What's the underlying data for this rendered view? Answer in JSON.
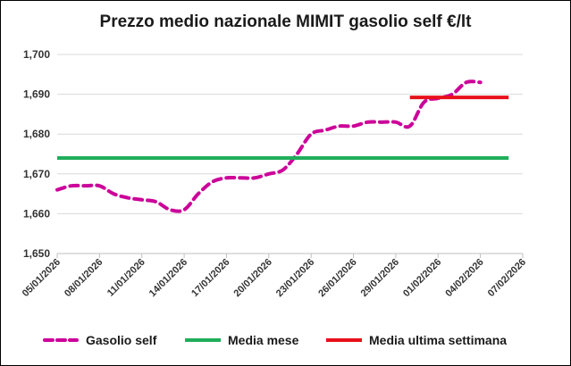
{
  "chart_data": {
    "type": "line",
    "title": "Prezzo medio nazionale MIMIT gasolio self €/lt",
    "ylim": [
      1.65,
      1.7
    ],
    "y_ticks": [
      "1,650",
      "1,660",
      "1,670",
      "1,680",
      "1,690",
      "1,700"
    ],
    "y_tick_values": [
      1.65,
      1.66,
      1.67,
      1.68,
      1.69,
      1.7
    ],
    "x_range": [
      "2026-01-05",
      "2026-02-07"
    ],
    "x_ticks": [
      "05/01/2026",
      "08/01/2026",
      "11/01/2026",
      "14/01/2026",
      "17/01/2026",
      "20/01/2026",
      "23/01/2026",
      "26/01/2026",
      "29/01/2026",
      "01/02/2026",
      "04/02/2026",
      "07/02/2026"
    ],
    "x_tick_dates": [
      "2026-01-05",
      "2026-01-08",
      "2026-01-11",
      "2026-01-14",
      "2026-01-17",
      "2026-01-20",
      "2026-01-23",
      "2026-01-26",
      "2026-01-29",
      "2026-02-01",
      "2026-02-04",
      "2026-02-07"
    ],
    "grid": "horizontal",
    "legend_position": "bottom",
    "series": [
      {
        "name": "Gasolio self",
        "style": "dashed",
        "color": "#cc0099",
        "points": [
          {
            "x": "2026-01-05",
            "y": 1.666
          },
          {
            "x": "2026-01-06",
            "y": 1.667
          },
          {
            "x": "2026-01-07",
            "y": 1.667
          },
          {
            "x": "2026-01-08",
            "y": 1.667
          },
          {
            "x": "2026-01-09",
            "y": 1.665
          },
          {
            "x": "2026-01-10",
            "y": 1.664
          },
          {
            "x": "2026-01-11",
            "y": 1.6635
          },
          {
            "x": "2026-01-12",
            "y": 1.663
          },
          {
            "x": "2026-01-13",
            "y": 1.661
          },
          {
            "x": "2026-01-14",
            "y": 1.661
          },
          {
            "x": "2026-01-15",
            "y": 1.665
          },
          {
            "x": "2026-01-16",
            "y": 1.668
          },
          {
            "x": "2026-01-17",
            "y": 1.669
          },
          {
            "x": "2026-01-18",
            "y": 1.669
          },
          {
            "x": "2026-01-19",
            "y": 1.669
          },
          {
            "x": "2026-01-20",
            "y": 1.67
          },
          {
            "x": "2026-01-21",
            "y": 1.671
          },
          {
            "x": "2026-01-22",
            "y": 1.675
          },
          {
            "x": "2026-01-23",
            "y": 1.68
          },
          {
            "x": "2026-01-24",
            "y": 1.681
          },
          {
            "x": "2026-01-25",
            "y": 1.682
          },
          {
            "x": "2026-01-26",
            "y": 1.682
          },
          {
            "x": "2026-01-27",
            "y": 1.683
          },
          {
            "x": "2026-01-28",
            "y": 1.683
          },
          {
            "x": "2026-01-29",
            "y": 1.683
          },
          {
            "x": "2026-01-30",
            "y": 1.682
          },
          {
            "x": "2026-01-31",
            "y": 1.688
          },
          {
            "x": "2026-02-01",
            "y": 1.689
          },
          {
            "x": "2026-02-02",
            "y": 1.69
          },
          {
            "x": "2026-02-03",
            "y": 1.693
          },
          {
            "x": "2026-02-04",
            "y": 1.693
          }
        ]
      },
      {
        "name": "Media mese",
        "style": "solid",
        "color": "#1fae5b",
        "points": [
          {
            "x": "2026-01-05",
            "y": 1.674
          },
          {
            "x": "2026-02-06",
            "y": 1.674
          }
        ]
      },
      {
        "name": "Media ultima settimana",
        "style": "solid",
        "color": "#e8101a",
        "points": [
          {
            "x": "2026-01-30",
            "y": 1.6892
          },
          {
            "x": "2026-02-06",
            "y": 1.6892
          }
        ]
      }
    ]
  }
}
